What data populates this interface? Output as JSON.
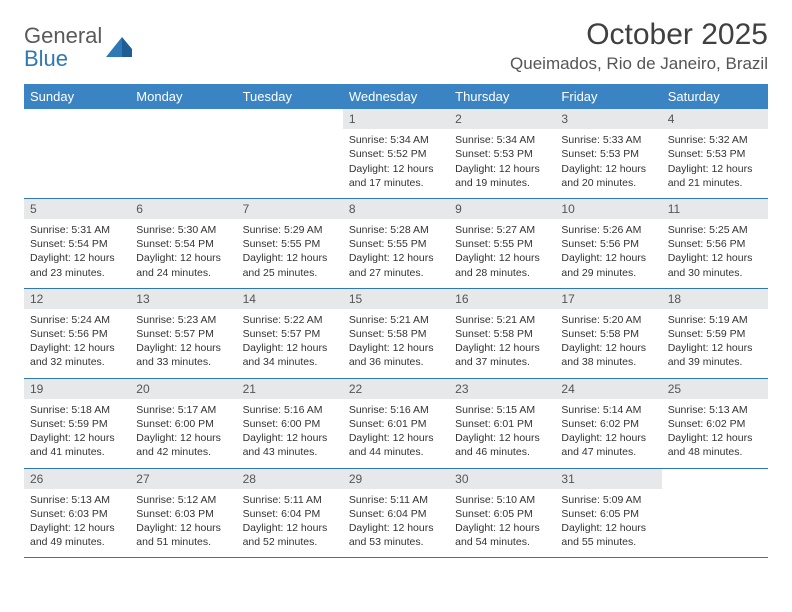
{
  "brand": {
    "word1": "General",
    "word2": "Blue"
  },
  "title": "October 2025",
  "location": "Queimados, Rio de Janeiro, Brazil",
  "colors": {
    "header_bg": "#3b84c4",
    "header_text": "#ffffff",
    "daynum_bg": "#e7e8ea",
    "rule": "#2f78b7",
    "brand_gray": "#5a5a5a",
    "brand_blue": "#2f78b7"
  },
  "day_names": [
    "Sunday",
    "Monday",
    "Tuesday",
    "Wednesday",
    "Thursday",
    "Friday",
    "Saturday"
  ],
  "weeks": [
    [
      null,
      null,
      null,
      {
        "n": "1",
        "sr": "Sunrise: 5:34 AM",
        "ss": "Sunset: 5:52 PM",
        "dl1": "Daylight: 12 hours",
        "dl2": "and 17 minutes."
      },
      {
        "n": "2",
        "sr": "Sunrise: 5:34 AM",
        "ss": "Sunset: 5:53 PM",
        "dl1": "Daylight: 12 hours",
        "dl2": "and 19 minutes."
      },
      {
        "n": "3",
        "sr": "Sunrise: 5:33 AM",
        "ss": "Sunset: 5:53 PM",
        "dl1": "Daylight: 12 hours",
        "dl2": "and 20 minutes."
      },
      {
        "n": "4",
        "sr": "Sunrise: 5:32 AM",
        "ss": "Sunset: 5:53 PM",
        "dl1": "Daylight: 12 hours",
        "dl2": "and 21 minutes."
      }
    ],
    [
      {
        "n": "5",
        "sr": "Sunrise: 5:31 AM",
        "ss": "Sunset: 5:54 PM",
        "dl1": "Daylight: 12 hours",
        "dl2": "and 23 minutes."
      },
      {
        "n": "6",
        "sr": "Sunrise: 5:30 AM",
        "ss": "Sunset: 5:54 PM",
        "dl1": "Daylight: 12 hours",
        "dl2": "and 24 minutes."
      },
      {
        "n": "7",
        "sr": "Sunrise: 5:29 AM",
        "ss": "Sunset: 5:55 PM",
        "dl1": "Daylight: 12 hours",
        "dl2": "and 25 minutes."
      },
      {
        "n": "8",
        "sr": "Sunrise: 5:28 AM",
        "ss": "Sunset: 5:55 PM",
        "dl1": "Daylight: 12 hours",
        "dl2": "and 27 minutes."
      },
      {
        "n": "9",
        "sr": "Sunrise: 5:27 AM",
        "ss": "Sunset: 5:55 PM",
        "dl1": "Daylight: 12 hours",
        "dl2": "and 28 minutes."
      },
      {
        "n": "10",
        "sr": "Sunrise: 5:26 AM",
        "ss": "Sunset: 5:56 PM",
        "dl1": "Daylight: 12 hours",
        "dl2": "and 29 minutes."
      },
      {
        "n": "11",
        "sr": "Sunrise: 5:25 AM",
        "ss": "Sunset: 5:56 PM",
        "dl1": "Daylight: 12 hours",
        "dl2": "and 30 minutes."
      }
    ],
    [
      {
        "n": "12",
        "sr": "Sunrise: 5:24 AM",
        "ss": "Sunset: 5:56 PM",
        "dl1": "Daylight: 12 hours",
        "dl2": "and 32 minutes."
      },
      {
        "n": "13",
        "sr": "Sunrise: 5:23 AM",
        "ss": "Sunset: 5:57 PM",
        "dl1": "Daylight: 12 hours",
        "dl2": "and 33 minutes."
      },
      {
        "n": "14",
        "sr": "Sunrise: 5:22 AM",
        "ss": "Sunset: 5:57 PM",
        "dl1": "Daylight: 12 hours",
        "dl2": "and 34 minutes."
      },
      {
        "n": "15",
        "sr": "Sunrise: 5:21 AM",
        "ss": "Sunset: 5:58 PM",
        "dl1": "Daylight: 12 hours",
        "dl2": "and 36 minutes."
      },
      {
        "n": "16",
        "sr": "Sunrise: 5:21 AM",
        "ss": "Sunset: 5:58 PM",
        "dl1": "Daylight: 12 hours",
        "dl2": "and 37 minutes."
      },
      {
        "n": "17",
        "sr": "Sunrise: 5:20 AM",
        "ss": "Sunset: 5:58 PM",
        "dl1": "Daylight: 12 hours",
        "dl2": "and 38 minutes."
      },
      {
        "n": "18",
        "sr": "Sunrise: 5:19 AM",
        "ss": "Sunset: 5:59 PM",
        "dl1": "Daylight: 12 hours",
        "dl2": "and 39 minutes."
      }
    ],
    [
      {
        "n": "19",
        "sr": "Sunrise: 5:18 AM",
        "ss": "Sunset: 5:59 PM",
        "dl1": "Daylight: 12 hours",
        "dl2": "and 41 minutes."
      },
      {
        "n": "20",
        "sr": "Sunrise: 5:17 AM",
        "ss": "Sunset: 6:00 PM",
        "dl1": "Daylight: 12 hours",
        "dl2": "and 42 minutes."
      },
      {
        "n": "21",
        "sr": "Sunrise: 5:16 AM",
        "ss": "Sunset: 6:00 PM",
        "dl1": "Daylight: 12 hours",
        "dl2": "and 43 minutes."
      },
      {
        "n": "22",
        "sr": "Sunrise: 5:16 AM",
        "ss": "Sunset: 6:01 PM",
        "dl1": "Daylight: 12 hours",
        "dl2": "and 44 minutes."
      },
      {
        "n": "23",
        "sr": "Sunrise: 5:15 AM",
        "ss": "Sunset: 6:01 PM",
        "dl1": "Daylight: 12 hours",
        "dl2": "and 46 minutes."
      },
      {
        "n": "24",
        "sr": "Sunrise: 5:14 AM",
        "ss": "Sunset: 6:02 PM",
        "dl1": "Daylight: 12 hours",
        "dl2": "and 47 minutes."
      },
      {
        "n": "25",
        "sr": "Sunrise: 5:13 AM",
        "ss": "Sunset: 6:02 PM",
        "dl1": "Daylight: 12 hours",
        "dl2": "and 48 minutes."
      }
    ],
    [
      {
        "n": "26",
        "sr": "Sunrise: 5:13 AM",
        "ss": "Sunset: 6:03 PM",
        "dl1": "Daylight: 12 hours",
        "dl2": "and 49 minutes."
      },
      {
        "n": "27",
        "sr": "Sunrise: 5:12 AM",
        "ss": "Sunset: 6:03 PM",
        "dl1": "Daylight: 12 hours",
        "dl2": "and 51 minutes."
      },
      {
        "n": "28",
        "sr": "Sunrise: 5:11 AM",
        "ss": "Sunset: 6:04 PM",
        "dl1": "Daylight: 12 hours",
        "dl2": "and 52 minutes."
      },
      {
        "n": "29",
        "sr": "Sunrise: 5:11 AM",
        "ss": "Sunset: 6:04 PM",
        "dl1": "Daylight: 12 hours",
        "dl2": "and 53 minutes."
      },
      {
        "n": "30",
        "sr": "Sunrise: 5:10 AM",
        "ss": "Sunset: 6:05 PM",
        "dl1": "Daylight: 12 hours",
        "dl2": "and 54 minutes."
      },
      {
        "n": "31",
        "sr": "Sunrise: 5:09 AM",
        "ss": "Sunset: 6:05 PM",
        "dl1": "Daylight: 12 hours",
        "dl2": "and 55 minutes."
      },
      null
    ]
  ]
}
